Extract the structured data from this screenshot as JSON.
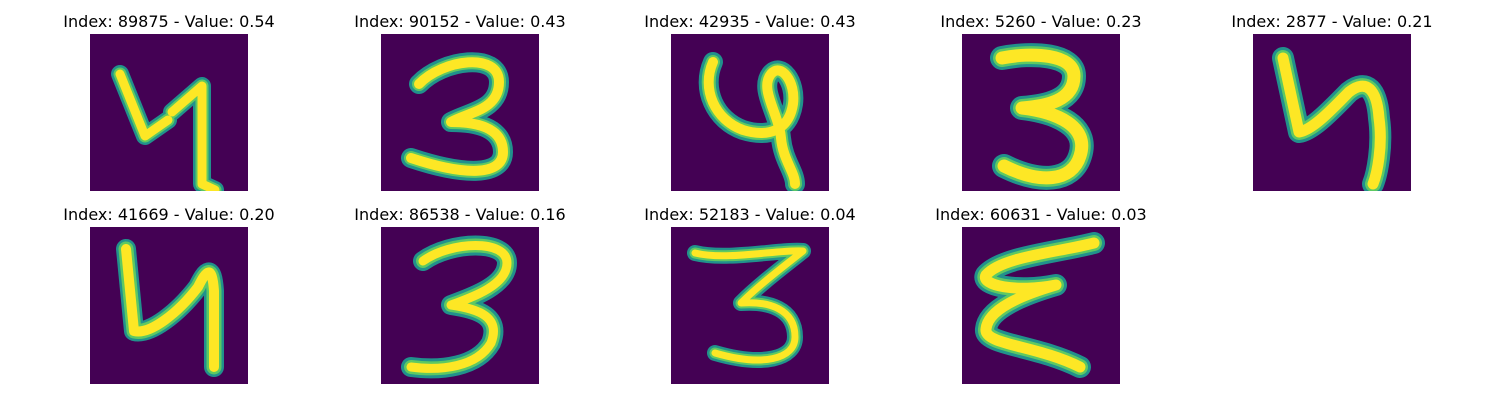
{
  "colors": {
    "background": "#440154",
    "stroke_outer": "#21918C",
    "stroke_mid": "#5EC962",
    "stroke_core": "#FDE725"
  },
  "samples": [
    {
      "title": "Index: 89875 - Value: 0.54",
      "digit_shape": "Y-4-like"
    },
    {
      "title": "Index: 90152 - Value: 0.43",
      "digit_shape": "3-like"
    },
    {
      "title": "Index: 42935 - Value: 0.43",
      "digit_shape": "4-like"
    },
    {
      "title": "Index: 5260 - Value: 0.23",
      "digit_shape": "3-like"
    },
    {
      "title": "Index: 2877 - Value: 0.21",
      "digit_shape": "4-like"
    },
    {
      "title": "Index: 41669 - Value: 0.20",
      "digit_shape": "4-like"
    },
    {
      "title": "Index: 86538 - Value: 0.16",
      "digit_shape": "3-like"
    },
    {
      "title": "Index: 52183 - Value: 0.04",
      "digit_shape": "3-like"
    },
    {
      "title": "Index: 60631 - Value: 0.03",
      "digit_shape": "E-3-like"
    }
  ]
}
